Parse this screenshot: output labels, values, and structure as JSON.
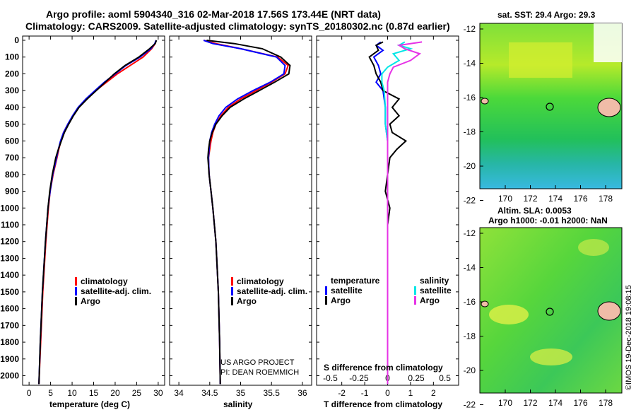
{
  "header": {
    "line1": "Argo profile: aoml 5904340_316 02-Mar-2018 17.56S 173.44E (NRT data)",
    "line2": "Climatology: CARS2009. Satellite-adjusted climatology: synTS_20180302.nc (0.87d earlier)"
  },
  "colors": {
    "climatology": "#ff0000",
    "satellite": "#0000ff",
    "argo": "#000000",
    "sat_salinity": "#00e6e6",
    "argo_salinity": "#e632e6"
  },
  "depth_axis": {
    "ticks": [
      0,
      100,
      200,
      300,
      400,
      500,
      600,
      700,
      800,
      900,
      1000,
      1100,
      1200,
      1300,
      1400,
      1500,
      1600,
      1700,
      1800,
      1900,
      2000
    ],
    "ylim": [
      0,
      2060
    ]
  },
  "chart_data": [
    {
      "type": "line",
      "id": "temperature",
      "xlabel": "temperature (deg C)",
      "xlim": [
        -1.5,
        31.5
      ],
      "xticks": [
        0,
        5,
        10,
        15,
        20,
        25,
        30
      ],
      "legend": {
        "climatology": "climatology",
        "satellite": "satellite-adj. clim.",
        "argo": "Argo"
      },
      "series": [
        {
          "name": "climatology",
          "depth": [
            0,
            20,
            50,
            100,
            150,
            200,
            250,
            300,
            350,
            400,
            450,
            500,
            550,
            600,
            650,
            700,
            800,
            900,
            1000,
            1200,
            1500,
            1800,
            2050
          ],
          "values": [
            29.5,
            29.3,
            28.5,
            26.5,
            23.5,
            20.5,
            18,
            15.5,
            13.3,
            11.5,
            10.2,
            9,
            8,
            7.4,
            6.9,
            6.5,
            5.6,
            4.9,
            4.5,
            3.9,
            3.2,
            2.7,
            2.3
          ]
        },
        {
          "name": "satellite-adj. clim.",
          "depth": [
            0,
            20,
            50,
            100,
            150,
            200,
            250,
            300,
            350,
            400,
            450,
            500,
            550,
            600,
            650,
            700,
            800,
            900,
            1000,
            1200,
            1500,
            1800,
            2050
          ],
          "values": [
            29.5,
            29.2,
            28.3,
            25.8,
            22.5,
            20,
            17.5,
            15.3,
            13.2,
            11.4,
            10.1,
            9,
            8,
            7.3,
            6.8,
            6.4,
            5.5,
            4.9,
            4.4,
            3.8,
            3.1,
            2.6,
            2.3
          ]
        },
        {
          "name": "Argo",
          "depth": [
            0,
            20,
            50,
            100,
            150,
            200,
            250,
            300,
            350,
            400,
            450,
            500,
            550,
            600,
            650,
            700,
            800,
            900,
            1000,
            1200,
            1500,
            1800,
            2050
          ],
          "values": [
            29.6,
            29.3,
            28,
            25.5,
            22.3,
            19.8,
            17.7,
            15.6,
            13.5,
            11.6,
            10.3,
            9.2,
            8.2,
            7.5,
            6.8,
            6.2,
            5.4,
            4.8,
            4.4,
            3.8,
            3.1,
            2.6,
            2.3
          ]
        }
      ]
    },
    {
      "type": "line",
      "id": "salinity",
      "xlabel": "salinity",
      "xlim": [
        33.85,
        36.15
      ],
      "xticks": [
        34,
        34.5,
        35,
        35.5,
        36
      ],
      "legend": {
        "climatology": "climatology",
        "satellite": "satellite-adj. clim.",
        "argo": "Argo"
      },
      "credits": [
        "US ARGO PROJECT",
        "PI: DEAN ROEMMICH"
      ],
      "series": [
        {
          "name": "climatology",
          "depth": [
            0,
            20,
            50,
            100,
            150,
            200,
            250,
            300,
            350,
            400,
            450,
            500,
            550,
            600,
            650,
            700,
            800,
            900,
            1000,
            1200,
            1500,
            1800,
            2050
          ],
          "values": [
            34.4,
            34.6,
            35.0,
            35.6,
            35.77,
            35.72,
            35.5,
            35.25,
            35.0,
            34.8,
            34.68,
            34.6,
            34.55,
            34.52,
            34.5,
            34.48,
            34.49,
            34.52,
            34.55,
            34.6,
            34.64,
            34.66,
            34.67
          ]
        },
        {
          "name": "satellite-adj. clim.",
          "depth": [
            0,
            20,
            50,
            100,
            150,
            200,
            250,
            300,
            350,
            400,
            450,
            500,
            550,
            600,
            650,
            700,
            800,
            900,
            1000,
            1200,
            1500,
            1800,
            2050
          ],
          "values": [
            34.4,
            34.55,
            35.0,
            35.58,
            35.72,
            35.7,
            35.48,
            35.2,
            34.95,
            34.76,
            34.65,
            34.58,
            34.53,
            34.5,
            34.49,
            34.48,
            34.49,
            34.52,
            34.55,
            34.6,
            34.64,
            34.66,
            34.67
          ]
        },
        {
          "name": "Argo",
          "depth": [
            0,
            20,
            50,
            100,
            150,
            200,
            250,
            300,
            350,
            400,
            450,
            500,
            550,
            600,
            650,
            700,
            800,
            900,
            1000,
            1200,
            1500,
            1800,
            2050
          ],
          "values": [
            34.45,
            34.9,
            35.35,
            35.65,
            35.8,
            35.78,
            35.55,
            35.3,
            35.05,
            34.83,
            34.7,
            34.6,
            34.54,
            34.5,
            34.48,
            34.47,
            34.49,
            34.52,
            34.55,
            34.6,
            34.64,
            34.66,
            34.67
          ]
        }
      ]
    },
    {
      "type": "line",
      "id": "difference",
      "xlabel": "T difference from climatology",
      "xlabel2": "S difference from climatology",
      "xlim": [
        -3.1,
        3.1
      ],
      "xticks": [
        -2,
        -1,
        0,
        1,
        2
      ],
      "xticks2_values": [
        -0.5,
        -0.25,
        0,
        0.25,
        0.5
      ],
      "xticks2_labels": [
        "-0.5",
        "-0.25",
        "0",
        "0.25",
        "0.5"
      ],
      "legend": {
        "temperature_head": "temperature",
        "salinity_head": "salinity",
        "satellite": "satellite",
        "argo": "Argo"
      },
      "series": [
        {
          "name": "T satellite",
          "depth": [
            10,
            30,
            60,
            100,
            150,
            200,
            250,
            300,
            400,
            500,
            600,
            700,
            800,
            1000,
            1500,
            2050
          ],
          "values": [
            -0.3,
            -0.5,
            -0.2,
            -0.6,
            -0.4,
            -0.3,
            -0.5,
            -0.2,
            -0.1,
            -0.1,
            0,
            0,
            0,
            0,
            0,
            0
          ]
        },
        {
          "name": "T Argo",
          "depth": [
            10,
            30,
            60,
            100,
            150,
            200,
            250,
            300,
            350,
            400,
            450,
            500,
            550,
            600,
            650,
            700,
            800,
            900,
            1000,
            1100,
            1500,
            2050
          ],
          "values": [
            -0.2,
            -0.5,
            -0.4,
            -0.8,
            -0.6,
            -0.5,
            -0.3,
            -0.2,
            0.5,
            0.2,
            0.5,
            0.1,
            0.2,
            0.8,
            0.4,
            0.1,
            0.0,
            -0.1,
            0.1,
            0.0,
            0.0,
            0.0
          ]
        },
        {
          "name": "S satellite",
          "depth": [
            10,
            30,
            50,
            80,
            120,
            160,
            200,
            250,
            300,
            400,
            500,
            600,
            800,
            1000,
            2050
          ],
          "values": [
            0.15,
            0.1,
            0.2,
            0.05,
            0.1,
            0.0,
            -0.05,
            -0.05,
            -0.03,
            -0.02,
            -0.02,
            0,
            0,
            0,
            0
          ]
        },
        {
          "name": "S Argo",
          "depth": [
            10,
            30,
            50,
            80,
            120,
            160,
            200,
            250,
            300,
            400,
            500,
            600,
            800,
            1000,
            2050
          ],
          "values": [
            0.3,
            0.1,
            0.15,
            0.28,
            0.2,
            0.05,
            0.02,
            0.0,
            0.0,
            0.0,
            0.0,
            0,
            0,
            0,
            0
          ]
        }
      ]
    }
  ],
  "maps": {
    "sst": {
      "title": "sat. SST: 29.4 Argo: 29.3",
      "yticks": [
        "-12",
        "-14",
        "-16",
        "-18",
        "-20",
        "-22"
      ],
      "xticks": [
        "170",
        "172",
        "174",
        "176",
        "178"
      ]
    },
    "sla": {
      "title1": "Altim. SLA: 0.0053",
      "title2": "Argo h1000: -0.01 h2000: NaN",
      "yticks": [
        "-12",
        "-14",
        "-16",
        "-18",
        "-20",
        "-22"
      ],
      "xticks": [
        "170",
        "172",
        "174",
        "176",
        "178"
      ]
    }
  },
  "footer": {
    "timestamp": "©IMOS 19-Dec-2018 19:08:15"
  }
}
